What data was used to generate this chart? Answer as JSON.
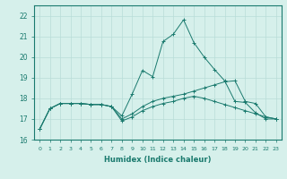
{
  "xlabel": "Humidex (Indice chaleur)",
  "xlim": [
    -0.5,
    23.5
  ],
  "ylim": [
    16,
    22.5
  ],
  "yticks": [
    16,
    17,
    18,
    19,
    20,
    21,
    22
  ],
  "xticks": [
    0,
    1,
    2,
    3,
    4,
    5,
    6,
    7,
    8,
    9,
    10,
    11,
    12,
    13,
    14,
    15,
    16,
    17,
    18,
    19,
    20,
    21,
    22,
    23
  ],
  "line_color": "#1a7a6e",
  "bg_color": "#d6f0eb",
  "grid_color": "#b8ddd8",
  "line1": [
    16.5,
    17.5,
    17.75,
    17.75,
    17.75,
    17.7,
    17.7,
    17.6,
    17.15,
    18.2,
    19.35,
    19.05,
    20.75,
    21.1,
    21.8,
    20.7,
    20.0,
    19.4,
    18.85,
    17.85,
    17.8,
    17.3,
    17.0,
    17.0
  ],
  "line2": [
    16.5,
    17.5,
    17.75,
    17.75,
    17.75,
    17.7,
    17.7,
    17.6,
    17.0,
    17.25,
    17.6,
    17.85,
    18.0,
    18.1,
    18.2,
    18.35,
    18.5,
    18.65,
    18.8,
    18.85,
    17.85,
    17.75,
    17.1,
    17.0
  ],
  "line3": [
    16.5,
    17.5,
    17.75,
    17.75,
    17.75,
    17.7,
    17.7,
    17.6,
    16.9,
    17.1,
    17.4,
    17.6,
    17.75,
    17.85,
    18.0,
    18.1,
    18.0,
    17.85,
    17.7,
    17.55,
    17.4,
    17.25,
    17.1,
    17.0
  ]
}
